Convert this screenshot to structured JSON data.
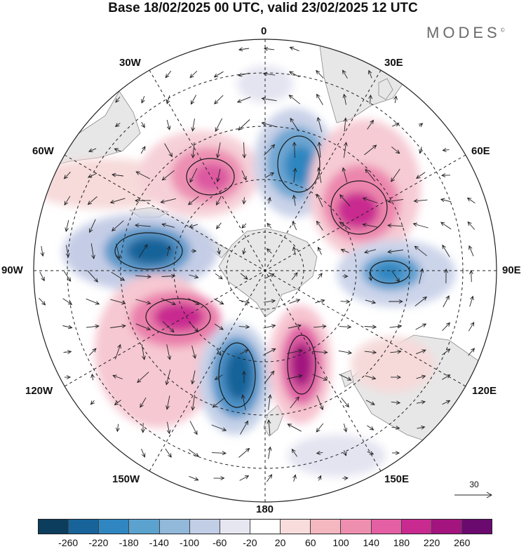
{
  "title": "Base 18/02/2025 00 UTC, valid 23/02/2025 12 UTC",
  "brand": {
    "name": "MODES",
    "mark": "©"
  },
  "lon_labels": {
    "top": "0",
    "bottom": "180",
    "left": "90W",
    "right": "90E",
    "w30": "30W",
    "e30": "30E",
    "w60": "60W",
    "e60": "60E",
    "w120": "120W",
    "e120": "120E",
    "w150": "150W",
    "e150": "150E"
  },
  "reference_vector": {
    "label": "30"
  },
  "colorbar": {
    "colors": [
      "#0d3d5c",
      "#17639a",
      "#2f86c0",
      "#5ba2cf",
      "#92b8da",
      "#c2cde6",
      "#e6e6f1",
      "#ffffff",
      "#f9dcdc",
      "#f5b7c0",
      "#ef8fb0",
      "#e55fa4",
      "#c92a90",
      "#a3147f",
      "#6b0a6e"
    ],
    "ticks": [
      "-260",
      "-220",
      "-180",
      "-140",
      "-100",
      "-60",
      "-20",
      "20",
      "60",
      "100",
      "140",
      "180",
      "220",
      "260"
    ]
  },
  "anomaly_centers": [
    {
      "lon": 0,
      "lat": -55,
      "value": -200
    },
    {
      "lon": 48,
      "lat": -50,
      "value": 230
    },
    {
      "lon": -45,
      "lat": -50,
      "value": 170
    },
    {
      "lon": -80,
      "lat": -54,
      "value": -230
    },
    {
      "lon": 90,
      "lat": -52,
      "value": -180
    },
    {
      "lon": -122,
      "lat": -49,
      "value": 230
    },
    {
      "lon": -165,
      "lat": -50,
      "value": -220
    },
    {
      "lon": 167,
      "lat": -53,
      "value": 260
    }
  ]
}
